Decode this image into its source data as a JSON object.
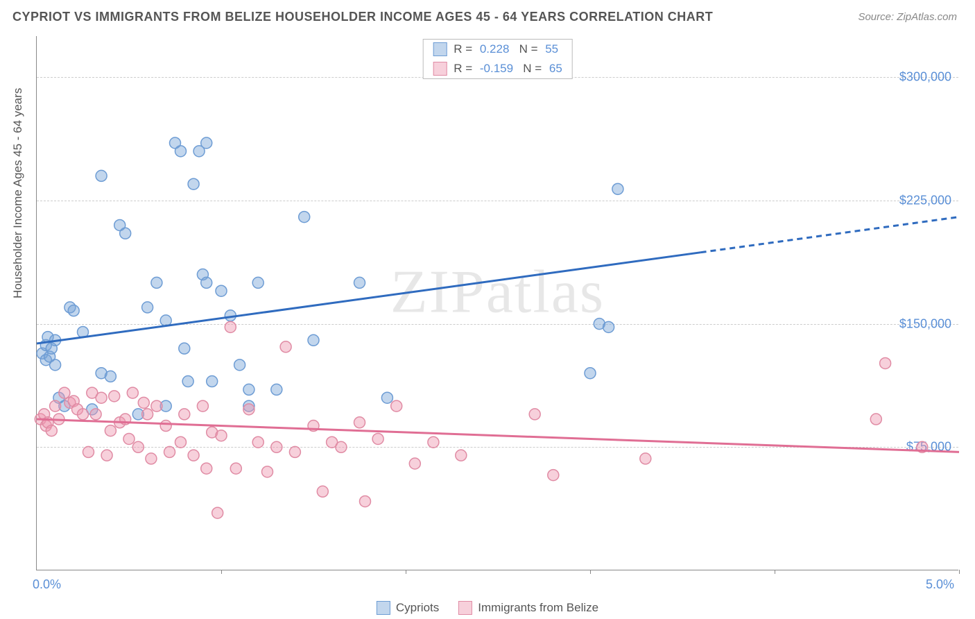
{
  "title": "CYPRIOT VS IMMIGRANTS FROM BELIZE HOUSEHOLDER INCOME AGES 45 - 64 YEARS CORRELATION CHART",
  "source": "Source: ZipAtlas.com",
  "watermark": "ZIPatlas",
  "y_axis_label": "Householder Income Ages 45 - 64 years",
  "chart": {
    "type": "scatter",
    "background_color": "#ffffff",
    "grid_color": "#cccccc",
    "axis_color": "#888888",
    "x": {
      "min": 0.0,
      "max": 5.0,
      "unit": "%",
      "min_label": "0.0%",
      "max_label": "5.0%",
      "tick_step": 1.0
    },
    "y": {
      "min": 0,
      "max": 325000,
      "ticks": [
        75000,
        150000,
        225000,
        300000
      ],
      "tick_labels": [
        "$75,000",
        "$150,000",
        "$225,000",
        "$300,000"
      ]
    },
    "series": [
      {
        "name": "Cypriots",
        "fill_color": "rgba(120,165,216,0.45)",
        "stroke_color": "#6d9cd4",
        "line_color": "#2f6bbf",
        "R": "0.228",
        "N": "55",
        "regression": {
          "x1": 0.0,
          "y1": 138000,
          "x2": 5.0,
          "y2": 215000,
          "solid_until_x": 3.6
        },
        "points": [
          [
            0.03,
            132000
          ],
          [
            0.05,
            137000
          ],
          [
            0.05,
            128000
          ],
          [
            0.06,
            142000
          ],
          [
            0.07,
            130000
          ],
          [
            0.08,
            135000
          ],
          [
            0.1,
            125000
          ],
          [
            0.1,
            140000
          ],
          [
            0.12,
            105000
          ],
          [
            0.15,
            100000
          ],
          [
            0.18,
            160000
          ],
          [
            0.2,
            158000
          ],
          [
            0.25,
            145000
          ],
          [
            0.3,
            98000
          ],
          [
            0.35,
            120000
          ],
          [
            0.35,
            240000
          ],
          [
            0.4,
            118000
          ],
          [
            0.45,
            210000
          ],
          [
            0.48,
            205000
          ],
          [
            0.55,
            95000
          ],
          [
            0.6,
            160000
          ],
          [
            0.65,
            175000
          ],
          [
            0.7,
            152000
          ],
          [
            0.7,
            100000
          ],
          [
            0.75,
            260000
          ],
          [
            0.78,
            255000
          ],
          [
            0.8,
            135000
          ],
          [
            0.82,
            115000
          ],
          [
            0.85,
            235000
          ],
          [
            0.88,
            255000
          ],
          [
            0.9,
            180000
          ],
          [
            0.92,
            175000
          ],
          [
            0.92,
            260000
          ],
          [
            0.95,
            115000
          ],
          [
            1.0,
            170000
          ],
          [
            1.05,
            155000
          ],
          [
            1.1,
            125000
          ],
          [
            1.15,
            110000
          ],
          [
            1.15,
            100000
          ],
          [
            1.2,
            175000
          ],
          [
            1.3,
            110000
          ],
          [
            1.45,
            215000
          ],
          [
            1.5,
            140000
          ],
          [
            1.75,
            175000
          ],
          [
            1.9,
            105000
          ],
          [
            3.0,
            120000
          ],
          [
            3.05,
            150000
          ],
          [
            3.1,
            148000
          ],
          [
            3.15,
            232000
          ]
        ]
      },
      {
        "name": "Immigrants from Belize",
        "fill_color": "rgba(238,150,175,0.45)",
        "stroke_color": "#e08ba4",
        "line_color": "#e06e94",
        "R": "-0.159",
        "N": "65",
        "regression": {
          "x1": 0.0,
          "y1": 92000,
          "x2": 5.0,
          "y2": 72000,
          "solid_until_x": 5.0
        },
        "points": [
          [
            0.02,
            92000
          ],
          [
            0.04,
            95000
          ],
          [
            0.05,
            88000
          ],
          [
            0.06,
            90000
          ],
          [
            0.08,
            85000
          ],
          [
            0.1,
            100000
          ],
          [
            0.12,
            92000
          ],
          [
            0.15,
            108000
          ],
          [
            0.18,
            102000
          ],
          [
            0.2,
            103000
          ],
          [
            0.22,
            98000
          ],
          [
            0.25,
            95000
          ],
          [
            0.28,
            72000
          ],
          [
            0.3,
            108000
          ],
          [
            0.32,
            95000
          ],
          [
            0.35,
            105000
          ],
          [
            0.38,
            70000
          ],
          [
            0.4,
            85000
          ],
          [
            0.42,
            106000
          ],
          [
            0.45,
            90000
          ],
          [
            0.48,
            92000
          ],
          [
            0.5,
            80000
          ],
          [
            0.52,
            108000
          ],
          [
            0.55,
            75000
          ],
          [
            0.58,
            102000
          ],
          [
            0.6,
            95000
          ],
          [
            0.62,
            68000
          ],
          [
            0.65,
            100000
          ],
          [
            0.7,
            88000
          ],
          [
            0.72,
            72000
          ],
          [
            0.78,
            78000
          ],
          [
            0.8,
            95000
          ],
          [
            0.85,
            70000
          ],
          [
            0.9,
            100000
          ],
          [
            0.92,
            62000
          ],
          [
            0.95,
            84000
          ],
          [
            0.98,
            35000
          ],
          [
            1.0,
            82000
          ],
          [
            1.05,
            148000
          ],
          [
            1.08,
            62000
          ],
          [
            1.15,
            98000
          ],
          [
            1.2,
            78000
          ],
          [
            1.25,
            60000
          ],
          [
            1.3,
            75000
          ],
          [
            1.35,
            136000
          ],
          [
            1.4,
            72000
          ],
          [
            1.5,
            88000
          ],
          [
            1.55,
            48000
          ],
          [
            1.6,
            78000
          ],
          [
            1.65,
            75000
          ],
          [
            1.75,
            90000
          ],
          [
            1.78,
            42000
          ],
          [
            1.85,
            80000
          ],
          [
            1.95,
            100000
          ],
          [
            2.05,
            65000
          ],
          [
            2.15,
            78000
          ],
          [
            2.3,
            70000
          ],
          [
            2.7,
            95000
          ],
          [
            2.8,
            58000
          ],
          [
            3.3,
            68000
          ],
          [
            4.55,
            92000
          ],
          [
            4.6,
            126000
          ],
          [
            4.8,
            75000
          ]
        ]
      }
    ]
  },
  "legend_labels": {
    "r_prefix": "R =",
    "n_prefix": "N ="
  },
  "bottom_legend": [
    "Cypriots",
    "Immigrants from Belize"
  ]
}
